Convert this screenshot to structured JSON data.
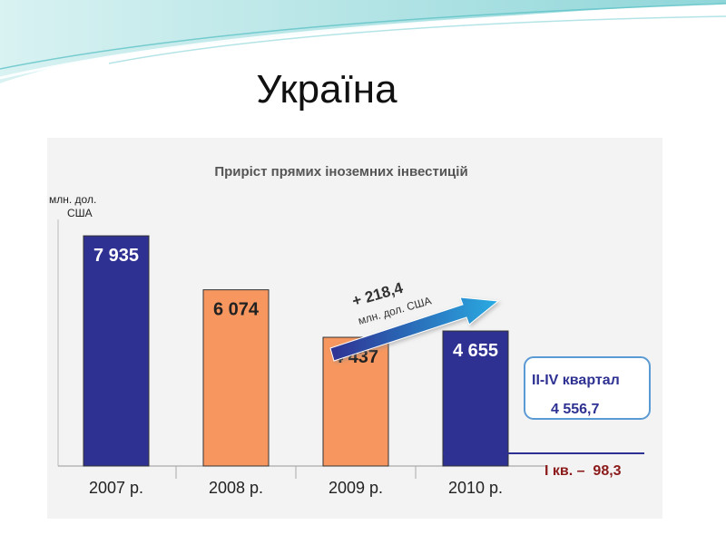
{
  "slide": {
    "title": "Україна"
  },
  "chart_data": {
    "type": "bar",
    "title": "Приріст прямих іноземних інвестицій",
    "ylabel": "млн. дол. США",
    "ylabel_lines": [
      "млн. дол.",
      "США"
    ],
    "categories": [
      "2007 р.",
      "2008 р.",
      "2009 р.",
      "2010 р."
    ],
    "values": [
      7935,
      6074,
      4437,
      4655
    ],
    "value_labels": [
      "7 935",
      "6 074",
      "4 437",
      "4 655"
    ],
    "colors": [
      "#2e3192",
      "#f7975f",
      "#f7975f",
      "#2e3192"
    ],
    "ylim": [
      0,
      8500
    ],
    "grid": false,
    "legend": "none",
    "annotations": {
      "arrow_value": "+ 218,4",
      "arrow_unit": "млн. дол. США",
      "box_title": "II-IV квартал",
      "box_value": "4 556,7",
      "q1_text": "І кв. –  98,3"
    }
  }
}
